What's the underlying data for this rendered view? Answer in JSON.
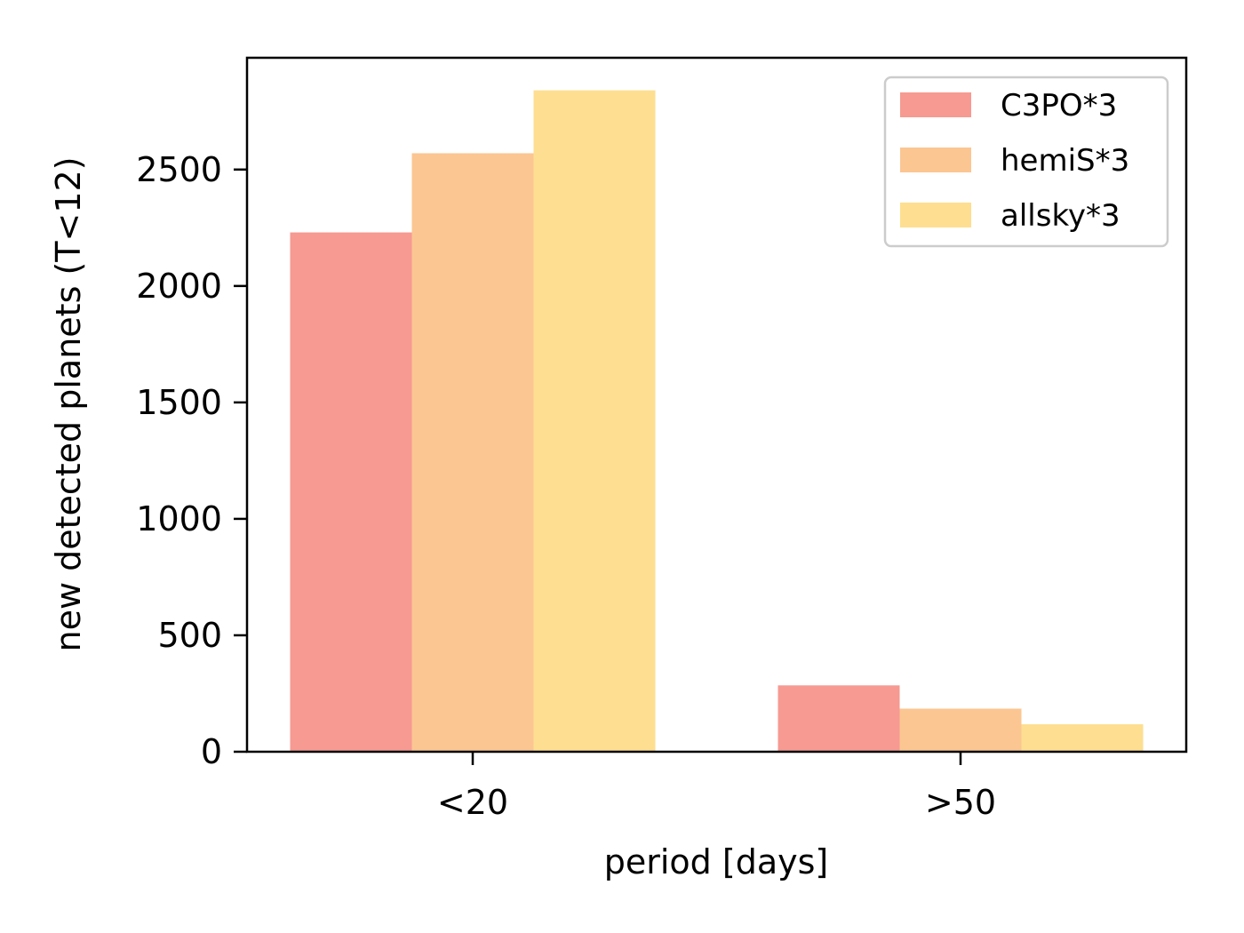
{
  "chart_data": {
    "type": "bar",
    "title": "",
    "xlabel": "period [days]",
    "ylabel": "new detected planets (T<12)",
    "categories": [
      "<20",
      ">50"
    ],
    "series": [
      {
        "name": "C3PO*3",
        "color": "#f69a92",
        "values": [
          2230,
          285
        ]
      },
      {
        "name": "hemiS*3",
        "color": "#fbc692",
        "values": [
          2570,
          185
        ]
      },
      {
        "name": "allsky*3",
        "color": "#fede90",
        "values": [
          2840,
          118
        ]
      }
    ],
    "ylim": [
      0,
      2980
    ],
    "yticks": [
      0,
      500,
      1000,
      1500,
      2000,
      2500
    ],
    "ytick_labels": [
      "0",
      "500",
      "1000",
      "1500",
      "2000",
      "2500"
    ],
    "grid": false,
    "legend_position": "upper-right"
  }
}
